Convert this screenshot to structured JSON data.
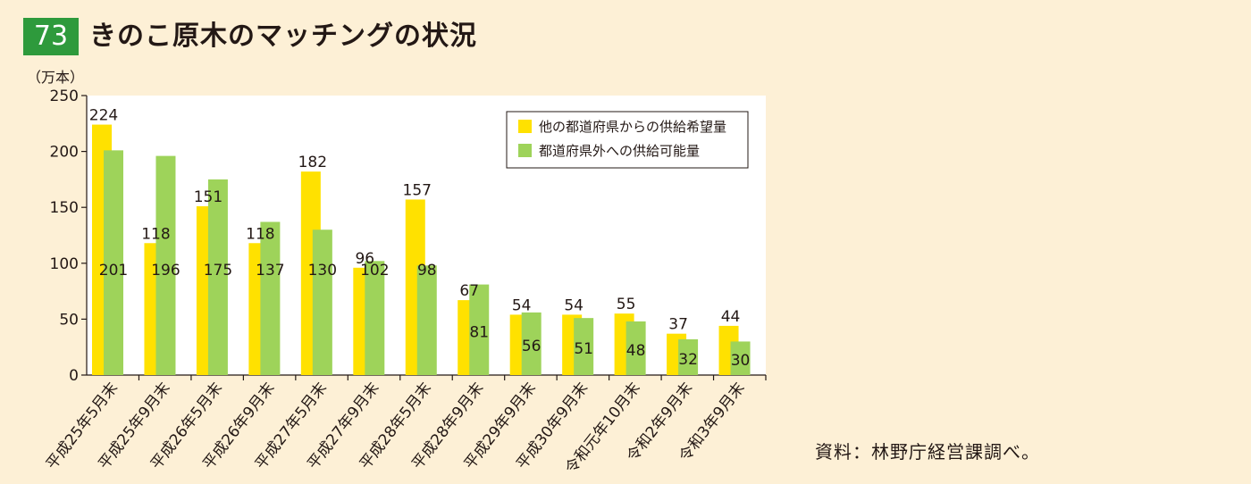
{
  "figure": {
    "number": "73",
    "title": "きのこ原木のマッチングの状況",
    "source": "資料：林野庁経営課調べ。"
  },
  "chart_data": {
    "type": "bar",
    "title": "きのこ原木のマッチングの状況",
    "ylabel": "（万本）",
    "xlabel": "",
    "ylim": [
      0,
      250
    ],
    "yticks": [
      0,
      50,
      100,
      150,
      200,
      250
    ],
    "grid": false,
    "legend_position": "top-right",
    "categories": [
      "平成25年5月末",
      "平成25年9月末",
      "平成26年5月末",
      "平成26年9月末",
      "平成27年5月末",
      "平成27年9月末",
      "平成28年5月末",
      "平成28年9月末",
      "平成29年9月末",
      "平成30年9月末",
      "令和元年10月末",
      "令和2年9月末",
      "令和3年9月末"
    ],
    "series": [
      {
        "name": "他の都道府県からの供給希望量",
        "color": "#ffe100",
        "values": [
          224,
          118,
          151,
          118,
          182,
          96,
          157,
          67,
          54,
          54,
          55,
          37,
          44
        ]
      },
      {
        "name": "都道府県外への供給可能量",
        "color": "#9ed35a",
        "values": [
          201,
          196,
          175,
          137,
          130,
          102,
          98,
          81,
          56,
          51,
          48,
          32,
          30
        ]
      }
    ]
  }
}
